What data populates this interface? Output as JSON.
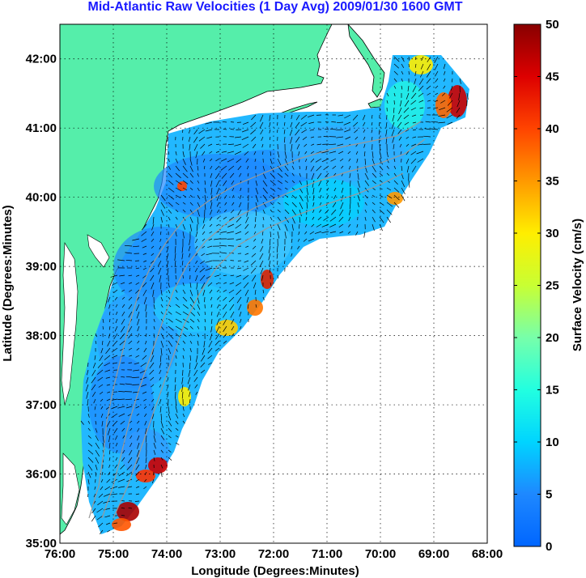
{
  "title": "Mid-Atlantic Raw Velocities (1 Day Avg) 2009/01/30 1600 GMT",
  "map": {
    "xlabel": "Longitude (Degrees:Minutes)",
    "ylabel": "Latitude (Degrees:Minutes)",
    "lon_range": [
      -76,
      -68
    ],
    "lat_range": [
      35,
      42.5
    ],
    "x_ticks": [
      "76:00",
      "75:00",
      "74:00",
      "73:00",
      "72:00",
      "71:00",
      "70:00",
      "69:00",
      "68:00"
    ],
    "y_ticks": [
      "35:00",
      "36:00",
      "37:00",
      "38:00",
      "39:00",
      "40:00",
      "41:00",
      "42:00"
    ],
    "grid": "dotted",
    "colors": {
      "land": "#55eeaa",
      "ocean": "#ffffff",
      "isobath": "#999999",
      "vector": "#000000"
    }
  },
  "colorbar": {
    "label": "Surface Velocity (cm/s)",
    "ticks": [
      "0",
      "5",
      "10",
      "15",
      "20",
      "25",
      "30",
      "35",
      "40",
      "45",
      "50"
    ],
    "range": [
      0,
      50
    ],
    "colormap": "jet"
  }
}
